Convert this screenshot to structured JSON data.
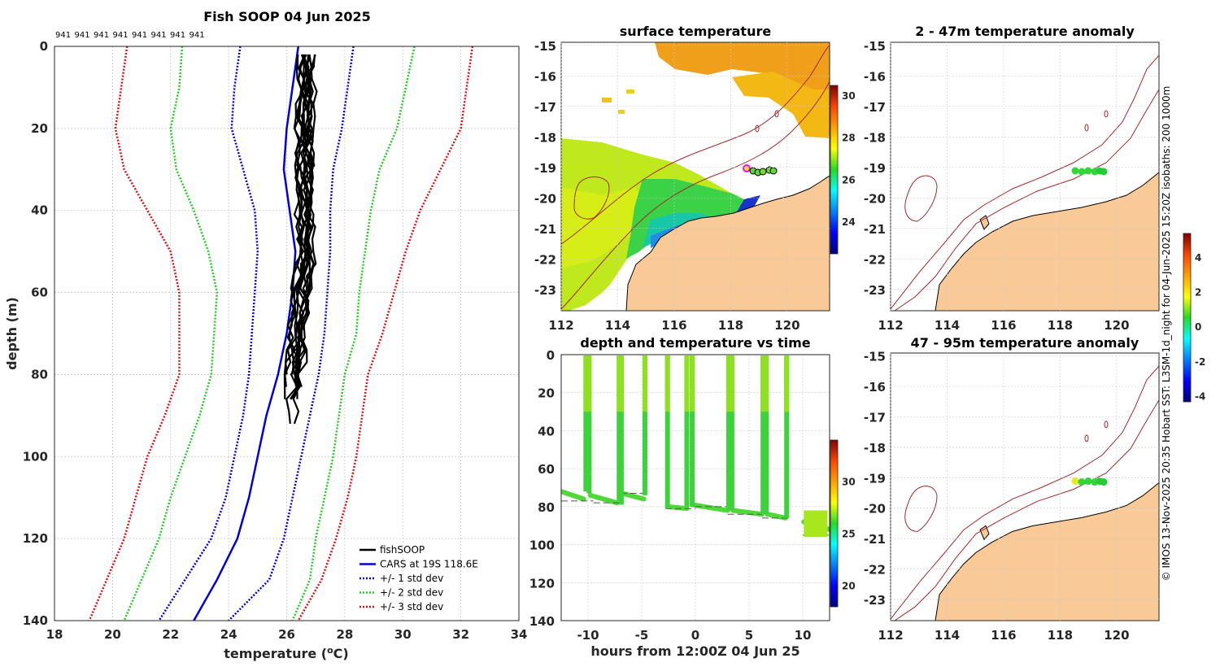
{
  "chart_data": [
    {
      "type": "line",
      "title": "Fish SOOP 04 Jun 2025",
      "xlabel": "temperature (",
      "xlabel_sup": "o",
      "xlabel_unit": "C)",
      "ylabel": "depth (m)",
      "xlim": [
        18,
        34
      ],
      "ylim": [
        140,
        0
      ],
      "xticks": [
        "18",
        "20",
        "22",
        "24",
        "26",
        "28",
        "30",
        "32",
        "34"
      ],
      "yticks": [
        "0",
        "20",
        "40",
        "60",
        "80",
        "100",
        "120",
        "140"
      ],
      "top_labels": [
        "941",
        "941",
        "941",
        "941",
        "941",
        "941",
        "941",
        "941"
      ],
      "legend": [
        "fishSOOP",
        "CARS at 19S 118.6E",
        "+/- 1 std dev",
        "+/- 2 std dev",
        "+/- 3 std dev"
      ],
      "series": [
        {
          "name": "CARS",
          "color": "#0000dd",
          "depth": [
            0,
            10,
            20,
            30,
            40,
            50,
            60,
            70,
            80,
            90,
            100,
            110,
            120,
            130,
            140
          ],
          "temp": [
            26.4,
            26.2,
            26.0,
            25.9,
            26.1,
            26.3,
            26.2,
            26.0,
            25.7,
            25.3,
            25.0,
            24.7,
            24.3,
            23.6,
            22.8
          ]
        },
        {
          "name": "-1sd",
          "color": "#0000dd",
          "depth": [
            0,
            10,
            20,
            30,
            40,
            50,
            60,
            70,
            80,
            90,
            100,
            110,
            120,
            130,
            140
          ],
          "temp": [
            24.4,
            24.2,
            24.1,
            24.5,
            24.9,
            25.0,
            24.9,
            24.8,
            24.7,
            24.5,
            24.2,
            23.9,
            23.4,
            22.5,
            21.6
          ]
        },
        {
          "name": "+1sd",
          "color": "#0000dd",
          "depth": [
            0,
            10,
            20,
            30,
            40,
            50,
            60,
            70,
            80,
            90,
            100,
            110,
            120,
            130,
            140
          ],
          "temp": [
            28.3,
            28.1,
            27.9,
            27.6,
            27.5,
            27.5,
            27.4,
            27.3,
            27.1,
            26.8,
            26.5,
            26.2,
            25.9,
            25.4,
            24.0
          ]
        },
        {
          "name": "-2sd",
          "color": "#22cc22",
          "depth": [
            0,
            10,
            20,
            30,
            40,
            50,
            60,
            70,
            80,
            90,
            100,
            110,
            120,
            130,
            140
          ],
          "temp": [
            22.4,
            22.3,
            22.0,
            22.2,
            22.8,
            23.3,
            23.6,
            23.5,
            23.4,
            23.0,
            22.5,
            22.0,
            21.6,
            21.0,
            20.4
          ]
        },
        {
          "name": "+2sd",
          "color": "#22cc22",
          "depth": [
            0,
            10,
            20,
            30,
            40,
            50,
            60,
            70,
            80,
            90,
            100,
            110,
            120,
            130,
            140
          ],
          "temp": [
            30.4,
            30.1,
            29.8,
            29.2,
            28.9,
            28.7,
            28.5,
            28.4,
            28.0,
            27.8,
            27.6,
            27.3,
            27.0,
            26.8,
            26.2
          ]
        },
        {
          "name": "-3sd",
          "color": "#dd1111",
          "depth": [
            0,
            10,
            20,
            30,
            40,
            50,
            60,
            70,
            80,
            90,
            100,
            110,
            120,
            130,
            140
          ],
          "temp": [
            20.5,
            20.3,
            20.1,
            20.4,
            21.2,
            22.0,
            22.3,
            22.3,
            22.3,
            21.8,
            21.2,
            20.8,
            20.4,
            19.8,
            19.2
          ]
        },
        {
          "name": "+3sd",
          "color": "#dd1111",
          "depth": [
            0,
            10,
            20,
            30,
            40,
            50,
            60,
            70,
            80,
            90,
            100,
            110,
            120,
            130,
            140
          ],
          "temp": [
            32.4,
            32.2,
            32.0,
            31.3,
            30.6,
            30.1,
            29.7,
            29.3,
            28.8,
            28.6,
            28.4,
            28.1,
            27.7,
            27.2,
            26.4
          ]
        }
      ]
    },
    {
      "type": "scatter",
      "title": "surface temperature",
      "xticks": [
        "112",
        "114",
        "116",
        "118",
        "120"
      ],
      "yticks": [
        "-15",
        "-16",
        "-17",
        "-18",
        "-19",
        "-20",
        "-21",
        "-22",
        "-23"
      ],
      "colorbar_ticks": [
        "30",
        "28",
        "26",
        "24"
      ]
    },
    {
      "type": "scatter",
      "title": "depth and temperature vs time",
      "xlabel": "hours from 12:00Z 04 Jun 25",
      "xticks": [
        "-10",
        "-5",
        "0",
        "5",
        "10"
      ],
      "yticks": [
        "0",
        "20",
        "40",
        "60",
        "80",
        "100",
        "120",
        "140"
      ],
      "colorbar_ticks": [
        "30",
        "25",
        "20"
      ],
      "profile_hours": [
        -10.2,
        -9.9,
        -7.1,
        -6.9,
        -4.7,
        -2.6,
        -0.8,
        -0.3,
        3.1,
        3.4,
        6.3,
        6.6,
        8.5
      ],
      "bottom_depths": [
        72,
        73,
        77,
        79,
        74,
        81,
        80,
        80,
        82,
        82,
        84,
        84,
        86
      ]
    },
    {
      "type": "scatter",
      "title": "2 - 47m temperature anomaly",
      "xticks": [
        "112",
        "114",
        "116",
        "118",
        "120"
      ],
      "yticks": [
        "-15",
        "-16",
        "-17",
        "-18",
        "-19",
        "-20",
        "-21",
        "-22",
        "-23"
      ],
      "colorbar_ticks": [
        "4",
        "2",
        "0",
        "-2",
        "-4"
      ]
    },
    {
      "type": "scatter",
      "title": "47 - 95m temperature anomaly",
      "xticks": [
        "112",
        "114",
        "116",
        "118",
        "120"
      ],
      "yticks": [
        "-15",
        "-16",
        "-17",
        "-18",
        "-19",
        "-20",
        "-21",
        "-22",
        "-23"
      ]
    }
  ],
  "credit": "© IMOS 13-Nov-2025 20:35 Hobart SST: L3SM-1d_night for 04-Jun-2025 15:20Z isobaths: 200  1000m",
  "colors": {
    "land": "#f9ca98",
    "isobath": "#a52a2a",
    "cars": "#0000dd",
    "std2": "#22cc22",
    "std3": "#dd1111"
  }
}
